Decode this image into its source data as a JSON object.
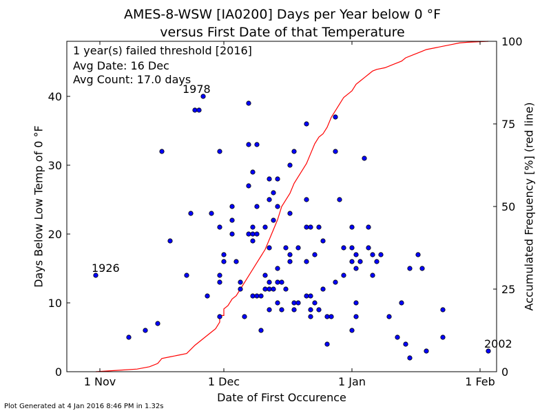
{
  "footer": "Plot Generated at 4 Jan 2016 8:46 PM in 1.32s",
  "chart_data": {
    "type": "scatter",
    "title_lines": [
      "AMES-8-WSW [IA0200] Days per Year below 0 °F",
      "versus First Date of that Temperature"
    ],
    "xlabel": "Date of First Occurence",
    "ylabel": "Days Below Low Temp of 0 °F",
    "y2label": "Accumulated Frequency [%] (red line)",
    "x_units": "days after 1 Oct",
    "xlim": [
      23,
      127
    ],
    "ylim": [
      0,
      48
    ],
    "y2lim": [
      0,
      100
    ],
    "x_ticks": [
      {
        "label": "1 Nov",
        "x": 31
      },
      {
        "label": "1 Dec",
        "x": 61
      },
      {
        "label": "1 Jan",
        "x": 92
      },
      {
        "label": "1 Feb",
        "x": 123
      }
    ],
    "y_ticks": [
      0,
      10,
      20,
      30,
      40
    ],
    "y2_ticks": [
      0,
      25,
      50,
      75,
      100
    ],
    "annotations_box": [
      "1 year(s) failed threshold [2016]",
      "Avg Date: 16 Dec",
      "Avg Count: 17.0 days"
    ],
    "point_labels": [
      {
        "text": "1926",
        "x": 30,
        "y": 14
      },
      {
        "text": "1978",
        "x": 52,
        "y": 40
      },
      {
        "text": "2002",
        "x": 125,
        "y": 3
      }
    ],
    "points": [
      [
        30,
        14
      ],
      [
        38,
        5
      ],
      [
        42,
        6
      ],
      [
        45,
        7
      ],
      [
        46,
        32
      ],
      [
        48,
        19
      ],
      [
        52,
        14
      ],
      [
        53,
        23
      ],
      [
        54,
        38
      ],
      [
        55,
        38
      ],
      [
        56,
        40
      ],
      [
        57,
        11
      ],
      [
        58,
        23
      ],
      [
        60,
        8
      ],
      [
        60,
        13
      ],
      [
        60,
        14
      ],
      [
        60,
        21
      ],
      [
        60,
        32
      ],
      [
        61,
        16
      ],
      [
        61,
        17
      ],
      [
        63,
        20
      ],
      [
        63,
        22
      ],
      [
        63,
        24
      ],
      [
        64,
        16
      ],
      [
        65,
        12
      ],
      [
        65,
        13
      ],
      [
        66,
        8
      ],
      [
        67,
        20
      ],
      [
        67,
        27
      ],
      [
        67,
        33
      ],
      [
        67,
        39
      ],
      [
        68,
        11
      ],
      [
        68,
        19
      ],
      [
        68,
        20
      ],
      [
        68,
        21
      ],
      [
        68,
        29
      ],
      [
        69,
        11
      ],
      [
        69,
        20
      ],
      [
        69,
        24
      ],
      [
        69,
        33
      ],
      [
        70,
        6
      ],
      [
        70,
        11
      ],
      [
        71,
        12
      ],
      [
        71,
        14
      ],
      [
        71,
        21
      ],
      [
        72,
        9
      ],
      [
        72,
        12
      ],
      [
        72,
        13
      ],
      [
        72,
        18
      ],
      [
        72,
        25
      ],
      [
        72,
        28
      ],
      [
        73,
        12
      ],
      [
        73,
        22
      ],
      [
        73,
        26
      ],
      [
        74,
        10
      ],
      [
        74,
        13
      ],
      [
        74,
        15
      ],
      [
        74,
        24
      ],
      [
        74,
        28
      ],
      [
        75,
        9
      ],
      [
        75,
        13
      ],
      [
        76,
        12
      ],
      [
        76,
        18
      ],
      [
        77,
        16
      ],
      [
        77,
        17
      ],
      [
        77,
        23
      ],
      [
        77,
        30
      ],
      [
        78,
        9
      ],
      [
        78,
        10
      ],
      [
        78,
        32
      ],
      [
        79,
        10
      ],
      [
        79,
        18
      ],
      [
        81,
        11
      ],
      [
        81,
        16
      ],
      [
        81,
        21
      ],
      [
        81,
        25
      ],
      [
        81,
        36
      ],
      [
        82,
        8
      ],
      [
        82,
        9
      ],
      [
        82,
        11
      ],
      [
        82,
        21
      ],
      [
        83,
        10
      ],
      [
        83,
        17
      ],
      [
        84,
        9
      ],
      [
        84,
        21
      ],
      [
        85,
        19
      ],
      [
        85,
        12
      ],
      [
        86,
        4
      ],
      [
        86,
        8
      ],
      [
        87,
        8
      ],
      [
        88,
        13
      ],
      [
        88,
        32
      ],
      [
        88,
        37
      ],
      [
        89,
        25
      ],
      [
        90,
        14
      ],
      [
        90,
        18
      ],
      [
        92,
        6
      ],
      [
        92,
        16
      ],
      [
        92,
        18
      ],
      [
        92,
        21
      ],
      [
        93,
        8
      ],
      [
        93,
        10
      ],
      [
        93,
        15
      ],
      [
        93,
        17
      ],
      [
        94,
        16
      ],
      [
        95,
        31
      ],
      [
        96,
        18
      ],
      [
        96,
        21
      ],
      [
        97,
        14
      ],
      [
        97,
        17
      ],
      [
        98,
        16
      ],
      [
        99,
        17
      ],
      [
        101,
        8
      ],
      [
        103,
        5
      ],
      [
        104,
        10
      ],
      [
        105,
        4
      ],
      [
        106,
        2
      ],
      [
        106,
        15
      ],
      [
        108,
        17
      ],
      [
        109,
        15
      ],
      [
        110,
        3
      ],
      [
        114,
        5
      ],
      [
        114,
        9
      ],
      [
        125,
        3
      ]
    ],
    "cdf_line": [
      [
        30,
        0
      ],
      [
        35,
        0.4
      ],
      [
        40,
        0.8
      ],
      [
        43,
        1.5
      ],
      [
        45,
        2.5
      ],
      [
        46,
        4
      ],
      [
        48,
        4.5
      ],
      [
        50,
        5
      ],
      [
        52,
        5.5
      ],
      [
        54,
        8
      ],
      [
        56,
        10
      ],
      [
        58,
        12
      ],
      [
        59,
        13
      ],
      [
        60,
        15
      ],
      [
        60,
        17
      ],
      [
        61,
        17
      ],
      [
        61,
        19
      ],
      [
        62,
        20
      ],
      [
        63,
        22
      ],
      [
        64,
        23
      ],
      [
        65,
        25
      ],
      [
        66,
        27
      ],
      [
        67,
        29
      ],
      [
        68,
        31
      ],
      [
        69,
        33
      ],
      [
        70,
        35
      ],
      [
        71,
        37
      ],
      [
        72,
        40
      ],
      [
        73,
        43
      ],
      [
        74,
        46
      ],
      [
        75,
        50
      ],
      [
        76,
        52
      ],
      [
        77,
        54
      ],
      [
        78,
        57
      ],
      [
        79,
        59
      ],
      [
        80,
        61
      ],
      [
        81,
        63
      ],
      [
        82,
        66
      ],
      [
        83,
        69
      ],
      [
        84,
        71
      ],
      [
        85,
        72
      ],
      [
        86,
        74
      ],
      [
        87,
        77
      ],
      [
        88,
        79
      ],
      [
        89,
        81
      ],
      [
        90,
        83
      ],
      [
        91,
        84
      ],
      [
        92,
        85
      ],
      [
        93,
        87
      ],
      [
        94,
        88
      ],
      [
        95,
        89
      ],
      [
        96,
        90
      ],
      [
        97,
        91
      ],
      [
        98,
        91.5
      ],
      [
        100,
        92
      ],
      [
        102,
        93
      ],
      [
        104,
        94
      ],
      [
        105,
        95
      ],
      [
        107,
        96
      ],
      [
        109,
        97
      ],
      [
        110,
        97.5
      ],
      [
        112,
        98
      ],
      [
        114,
        98.5
      ],
      [
        116,
        99
      ],
      [
        118,
        99.5
      ],
      [
        120,
        99.7
      ],
      [
        125,
        100
      ]
    ],
    "colors": {
      "points": "#0000ff",
      "point_edge": "#000000",
      "cdf_line": "#ff0000"
    }
  }
}
